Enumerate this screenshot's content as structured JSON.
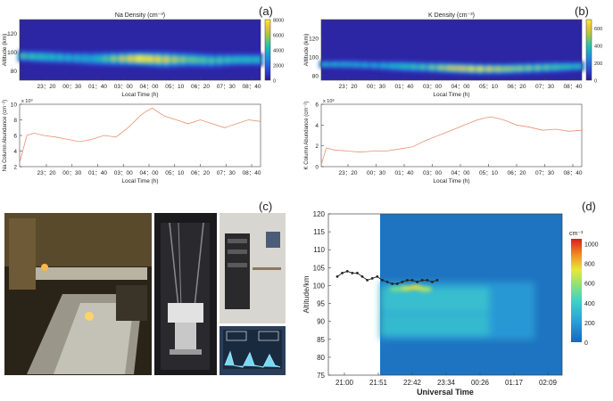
{
  "panel_labels": [
    "(a)",
    "(b)",
    "(c)",
    "(d)"
  ],
  "chart_data": [
    {
      "id": "a_top",
      "type": "heatmap",
      "title": "Na Density (cm⁻³)",
      "xlabel": "Local Time (h)",
      "ylabel": "Altitude (km)",
      "x_ticks": [
        "23：20",
        "00：30",
        "01：40",
        "03：00",
        "04：00",
        "05：10",
        "06：20",
        "07：30",
        "08：40"
      ],
      "y_ticks": [
        80,
        100,
        120
      ],
      "ylim": [
        70,
        135
      ],
      "colorbar_ticks": [
        0,
        2000,
        4000,
        6000,
        8000
      ],
      "colorbar_range": [
        0,
        8000
      ],
      "layer": {
        "x": [
          0,
          0.1,
          0.2,
          0.3,
          0.4,
          0.5,
          0.6,
          0.7,
          0.8,
          0.9,
          1.0
        ],
        "center_km": [
          96,
          95,
          94,
          93,
          93,
          93,
          92,
          92,
          91,
          92,
          92
        ],
        "halfwidth_km": [
          6,
          7,
          7,
          8,
          8,
          8,
          9,
          8,
          8,
          7,
          7
        ],
        "peak_density": [
          4500,
          4200,
          3800,
          3500,
          5500,
          7500,
          6500,
          5000,
          4500,
          4200,
          4000
        ]
      }
    },
    {
      "id": "a_bottom",
      "type": "line",
      "xlabel": "Local Time (h)",
      "ylabel": "Na Column Abundance (cm⁻²)",
      "y_exponent": "x 10⁹",
      "x_ticks": [
        "23：20",
        "00：30",
        "01：40",
        "03：00",
        "04：00",
        "05：10",
        "06：20",
        "07：30",
        "08：40"
      ],
      "y_ticks": [
        2,
        4,
        6,
        8,
        10
      ],
      "ylim": [
        2,
        10
      ],
      "x": [
        0,
        0.03,
        0.06,
        0.1,
        0.15,
        0.2,
        0.25,
        0.3,
        0.35,
        0.4,
        0.45,
        0.5,
        0.52,
        0.55,
        0.6,
        0.65,
        0.7,
        0.75,
        0.8,
        0.85,
        0.9,
        0.95,
        1.0
      ],
      "y": [
        2.5,
        6.0,
        6.3,
        6.0,
        5.8,
        5.5,
        5.2,
        5.5,
        6.0,
        5.8,
        7.0,
        8.5,
        9.0,
        9.5,
        8.5,
        8.0,
        7.5,
        8.0,
        7.5,
        7.0,
        7.5,
        8.0,
        7.8
      ]
    },
    {
      "id": "b_top",
      "type": "heatmap",
      "title": "K Density (cm⁻³)",
      "xlabel": "Local Time (h)",
      "ylabel": "Altitude (km)",
      "x_ticks": [
        "23：20",
        "00：30",
        "01：40",
        "03：00",
        "04：00",
        "05：10",
        "06：20",
        "07：30",
        "08：40"
      ],
      "y_ticks": [
        80,
        100,
        120
      ],
      "ylim": [
        75,
        140
      ],
      "colorbar_ticks": [
        0,
        200,
        400,
        600
      ],
      "colorbar_range": [
        0,
        700
      ],
      "layer": {
        "x": [
          0,
          0.1,
          0.2,
          0.3,
          0.4,
          0.5,
          0.6,
          0.7,
          0.8,
          0.9,
          1.0
        ],
        "center_km": [
          92,
          92,
          91,
          90,
          89,
          88,
          87,
          87,
          88,
          89,
          90
        ],
        "halfwidth_km": [
          4,
          5,
          5,
          6,
          6,
          6,
          6,
          6,
          6,
          6,
          5
        ],
        "peak_density": [
          350,
          300,
          300,
          350,
          400,
          550,
          600,
          500,
          450,
          400,
          350
        ]
      }
    },
    {
      "id": "b_bottom",
      "type": "line",
      "xlabel": "Local Time (h)",
      "ylabel": "K Column Abundance (cm⁻²)",
      "y_exponent": "x 10⁸",
      "x_ticks": [
        "23：20",
        "00：30",
        "01：40",
        "03：00",
        "04：00",
        "05：10",
        "06：20",
        "07：30",
        "08：40"
      ],
      "y_ticks": [
        0,
        2,
        4,
        6
      ],
      "ylim": [
        0,
        6
      ],
      "x": [
        0,
        0.02,
        0.05,
        0.1,
        0.15,
        0.2,
        0.25,
        0.3,
        0.35,
        0.4,
        0.45,
        0.5,
        0.55,
        0.6,
        0.65,
        0.7,
        0.75,
        0.8,
        0.85,
        0.9,
        0.95,
        1.0
      ],
      "y": [
        0.2,
        1.8,
        1.6,
        1.5,
        1.4,
        1.5,
        1.5,
        1.7,
        1.9,
        2.5,
        3.0,
        3.5,
        4.0,
        4.5,
        4.8,
        4.5,
        4.0,
        3.8,
        3.5,
        3.6,
        3.4,
        3.5
      ]
    },
    {
      "id": "d",
      "type": "heatmap",
      "xlabel": "Universal Time",
      "ylabel": "Altitude/km",
      "x_ticks": [
        "21:00",
        "21:51",
        "22:42",
        "23:34",
        "00:26",
        "01:17",
        "02:09"
      ],
      "y_ticks": [
        75,
        80,
        85,
        90,
        95,
        100,
        105,
        110,
        115,
        120
      ],
      "ylim": [
        75,
        120
      ],
      "colorbar_label": "cm⁻³",
      "colorbar_ticks": [
        0,
        200,
        400,
        600,
        800,
        1000
      ],
      "colorbar_range": [
        0,
        1050
      ],
      "line_series": {
        "x": [
          0,
          0.05,
          0.1,
          0.15,
          0.2,
          0.25,
          0.3,
          0.35,
          0.4,
          0.45,
          0.5,
          0.55,
          0.6,
          0.65,
          0.7,
          0.75,
          0.8,
          0.85,
          0.9,
          0.95,
          1.0
        ],
        "y": [
          102.5,
          103.5,
          104,
          103.5,
          103.5,
          102.5,
          101.5,
          102,
          102.5,
          101.5,
          101,
          100.5,
          100.5,
          101,
          101.5,
          101.5,
          101,
          101.5,
          101.5,
          101,
          101.5
        ]
      }
    }
  ]
}
